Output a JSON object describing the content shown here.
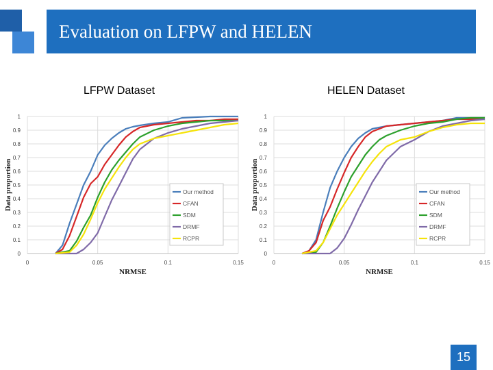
{
  "slide": {
    "title": "Evaluation on LFPW and HELEN",
    "page_number": "15",
    "accent_color": "#1e6fbf"
  },
  "chart_data": [
    {
      "type": "line",
      "title": "LFPW Dataset",
      "xlabel": "NRMSE",
      "ylabel": "Data proportion",
      "xlim": [
        0,
        0.15
      ],
      "ylim": [
        0,
        1
      ],
      "x_ticks": [
        "0",
        "0.05",
        "0.1",
        "0.15"
      ],
      "y_ticks": [
        "0",
        "0.1",
        "0.2",
        "0.3",
        "0.4",
        "0.5",
        "0.6",
        "0.7",
        "0.8",
        "0.9",
        "1"
      ],
      "grid": true,
      "legend_position": "bottom-right",
      "series": [
        {
          "name": "Our method",
          "color": "#4a7ebb",
          "x": [
            0.02,
            0.025,
            0.03,
            0.035,
            0.04,
            0.045,
            0.05,
            0.055,
            0.06,
            0.065,
            0.07,
            0.075,
            0.08,
            0.09,
            0.1,
            0.11,
            0.12,
            0.13,
            0.14,
            0.15
          ],
          "y": [
            0,
            0.06,
            0.22,
            0.36,
            0.5,
            0.6,
            0.72,
            0.79,
            0.84,
            0.88,
            0.91,
            0.925,
            0.935,
            0.95,
            0.96,
            0.99,
            0.995,
            1,
            1,
            1
          ]
        },
        {
          "name": "CFAN",
          "color": "#d62728",
          "x": [
            0.02,
            0.025,
            0.03,
            0.035,
            0.04,
            0.045,
            0.05,
            0.055,
            0.06,
            0.065,
            0.07,
            0.075,
            0.08,
            0.09,
            0.1,
            0.11,
            0.12,
            0.13,
            0.14,
            0.15
          ],
          "y": [
            0,
            0.03,
            0.13,
            0.27,
            0.41,
            0.51,
            0.56,
            0.65,
            0.72,
            0.79,
            0.85,
            0.89,
            0.92,
            0.94,
            0.95,
            0.96,
            0.97,
            0.97,
            0.98,
            0.98
          ]
        },
        {
          "name": "SDM",
          "color": "#2ca02c",
          "x": [
            0.02,
            0.03,
            0.035,
            0.04,
            0.045,
            0.05,
            0.055,
            0.06,
            0.065,
            0.07,
            0.075,
            0.08,
            0.09,
            0.1,
            0.11,
            0.12,
            0.13,
            0.14,
            0.15
          ],
          "y": [
            0,
            0.02,
            0.09,
            0.19,
            0.28,
            0.41,
            0.52,
            0.61,
            0.68,
            0.74,
            0.8,
            0.85,
            0.9,
            0.93,
            0.95,
            0.96,
            0.97,
            0.97,
            0.97
          ]
        },
        {
          "name": "DRMF",
          "color": "#7f6aa8",
          "x": [
            0.02,
            0.035,
            0.04,
            0.045,
            0.05,
            0.055,
            0.06,
            0.065,
            0.07,
            0.075,
            0.08,
            0.09,
            0.1,
            0.11,
            0.12,
            0.13,
            0.14,
            0.15
          ],
          "y": [
            0,
            0,
            0.03,
            0.08,
            0.15,
            0.27,
            0.39,
            0.49,
            0.59,
            0.69,
            0.76,
            0.84,
            0.88,
            0.91,
            0.93,
            0.95,
            0.96,
            0.97
          ]
        },
        {
          "name": "RCPR",
          "color": "#f5e30a",
          "x": [
            0.02,
            0.03,
            0.035,
            0.04,
            0.045,
            0.05,
            0.055,
            0.06,
            0.065,
            0.07,
            0.075,
            0.08,
            0.09,
            0.1,
            0.11,
            0.12,
            0.13,
            0.14,
            0.15
          ],
          "y": [
            0,
            0.01,
            0.06,
            0.14,
            0.25,
            0.37,
            0.47,
            0.55,
            0.63,
            0.7,
            0.76,
            0.8,
            0.84,
            0.86,
            0.88,
            0.9,
            0.92,
            0.94,
            0.95
          ]
        }
      ]
    },
    {
      "type": "line",
      "title": "HELEN Dataset",
      "xlabel": "NRMSE",
      "ylabel": "Data proportion",
      "xlim": [
        0,
        0.15
      ],
      "ylim": [
        0,
        1
      ],
      "x_ticks": [
        "0",
        "0.05",
        "0.1",
        "0.15"
      ],
      "y_ticks": [
        "0",
        "0.1",
        "0.2",
        "0.3",
        "0.4",
        "0.5",
        "0.6",
        "0.7",
        "0.8",
        "0.9",
        "1"
      ],
      "grid": true,
      "legend_position": "bottom-right",
      "series": [
        {
          "name": "Our method",
          "color": "#4a7ebb",
          "x": [
            0.02,
            0.025,
            0.03,
            0.035,
            0.04,
            0.045,
            0.05,
            0.055,
            0.06,
            0.065,
            0.07,
            0.075,
            0.08,
            0.09,
            0.1,
            0.11,
            0.12,
            0.13,
            0.14,
            0.15
          ],
          "y": [
            0,
            0.02,
            0.1,
            0.3,
            0.48,
            0.6,
            0.7,
            0.78,
            0.84,
            0.88,
            0.91,
            0.92,
            0.93,
            0.94,
            0.95,
            0.96,
            0.97,
            0.99,
            0.99,
            0.99
          ]
        },
        {
          "name": "CFAN",
          "color": "#d62728",
          "x": [
            0.02,
            0.025,
            0.03,
            0.035,
            0.04,
            0.045,
            0.05,
            0.055,
            0.06,
            0.065,
            0.07,
            0.075,
            0.08,
            0.09,
            0.1,
            0.11,
            0.12,
            0.13,
            0.14,
            0.15
          ],
          "y": [
            0,
            0.02,
            0.08,
            0.24,
            0.34,
            0.47,
            0.59,
            0.7,
            0.78,
            0.85,
            0.89,
            0.91,
            0.93,
            0.94,
            0.95,
            0.96,
            0.97,
            0.98,
            0.98,
            0.98
          ]
        },
        {
          "name": "SDM",
          "color": "#2ca02c",
          "x": [
            0.02,
            0.03,
            0.035,
            0.04,
            0.045,
            0.05,
            0.055,
            0.06,
            0.065,
            0.07,
            0.075,
            0.08,
            0.09,
            0.1,
            0.11,
            0.12,
            0.13,
            0.14,
            0.15
          ],
          "y": [
            0,
            0.01,
            0.08,
            0.2,
            0.33,
            0.45,
            0.56,
            0.64,
            0.72,
            0.78,
            0.83,
            0.86,
            0.9,
            0.93,
            0.95,
            0.96,
            0.98,
            0.99,
            0.99
          ]
        },
        {
          "name": "DRMF",
          "color": "#7f6aa8",
          "x": [
            0.02,
            0.04,
            0.045,
            0.05,
            0.055,
            0.06,
            0.065,
            0.07,
            0.075,
            0.08,
            0.09,
            0.1,
            0.11,
            0.12,
            0.13,
            0.14,
            0.15
          ],
          "y": [
            0,
            0,
            0.04,
            0.11,
            0.21,
            0.32,
            0.42,
            0.52,
            0.6,
            0.68,
            0.78,
            0.83,
            0.89,
            0.93,
            0.95,
            0.97,
            0.98
          ]
        },
        {
          "name": "RCPR",
          "color": "#f5e30a",
          "x": [
            0.02,
            0.03,
            0.035,
            0.04,
            0.045,
            0.05,
            0.055,
            0.06,
            0.065,
            0.07,
            0.075,
            0.08,
            0.09,
            0.1,
            0.11,
            0.12,
            0.13,
            0.14,
            0.15
          ],
          "y": [
            0,
            0.02,
            0.08,
            0.18,
            0.28,
            0.36,
            0.44,
            0.52,
            0.6,
            0.67,
            0.73,
            0.78,
            0.83,
            0.85,
            0.89,
            0.92,
            0.94,
            0.95,
            0.95
          ]
        }
      ]
    }
  ]
}
